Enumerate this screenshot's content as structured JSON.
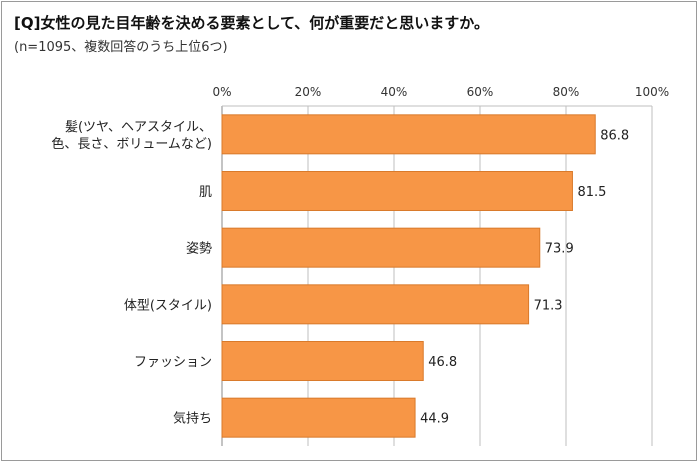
{
  "title": "[Q]女性の見た目年齢を決める要素として、何が重要だと思いますか。",
  "subtitle": "(n=1095、複数回答のうち上位6つ)",
  "colors": {
    "bar": "#f79646",
    "bar_stroke": "#d97a2b",
    "grid": "#bfbfbf",
    "axis": "#888888"
  },
  "chart_data": {
    "type": "bar",
    "orientation": "horizontal",
    "xlim": [
      0,
      100
    ],
    "tick_labels": [
      "0%",
      "20%",
      "40%",
      "60%",
      "80%",
      "100%"
    ],
    "tick_values": [
      0,
      20,
      40,
      60,
      80,
      100
    ],
    "grid": true,
    "categories": [
      [
        "髪(ツヤ、ヘアスタイル、",
        "色、長さ、ボリュームなど)"
      ],
      [
        "肌"
      ],
      [
        "姿勢"
      ],
      [
        "体型(スタイル)"
      ],
      [
        "ファッション"
      ],
      [
        "気持ち"
      ]
    ],
    "values": [
      86.8,
      81.5,
      73.9,
      71.3,
      46.8,
      44.9
    ],
    "value_labels": [
      "86.8",
      "81.5",
      "73.9",
      "71.3",
      "46.8",
      "44.9"
    ]
  }
}
